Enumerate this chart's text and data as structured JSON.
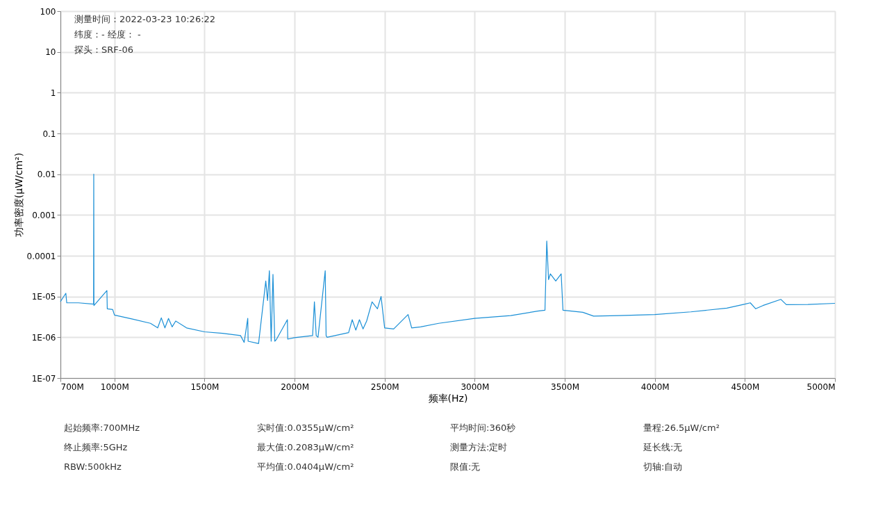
{
  "chart_data": {
    "type": "line",
    "xlabel": "频率(Hz)",
    "ylabel": "功率密度(μW/cm²)",
    "x": [
      700,
      730,
      735,
      800,
      884,
      885,
      886,
      958,
      960,
      990,
      1000,
      1100,
      1200,
      1240,
      1260,
      1280,
      1300,
      1320,
      1340,
      1400,
      1500,
      1600,
      1700,
      1720,
      1740,
      1742,
      1800,
      1840,
      1850,
      1860,
      1870,
      1880,
      1890,
      1900,
      1960,
      1962,
      2000,
      2100,
      2110,
      2120,
      2130,
      2170,
      2175,
      2180,
      2300,
      2320,
      2340,
      2360,
      2380,
      2400,
      2430,
      2460,
      2480,
      2500,
      2550,
      2630,
      2650,
      2700,
      2800,
      3000,
      3200,
      3350,
      3390,
      3400,
      3410,
      3420,
      3450,
      3480,
      3490,
      3600,
      3660,
      3800,
      4000,
      4200,
      4400,
      4500,
      4530,
      4560,
      4600,
      4700,
      4730,
      4850,
      5000
    ],
    "series": [
      {
        "color": "#1a8fd6",
        "values": [
          7.5e-06,
          1.2e-05,
          7e-06,
          7e-06,
          6.5e-06,
          0.01,
          6e-06,
          1.4e-05,
          5e-06,
          4.8e-06,
          3.5e-06,
          2.8e-06,
          2.2e-06,
          1.7e-06,
          3e-06,
          1.7e-06,
          2.9e-06,
          1.8e-06,
          2.5e-06,
          1.7e-06,
          1.36e-06,
          1.25e-06,
          1.1e-06,
          7.5e-07,
          2.9e-06,
          8e-07,
          7e-07,
          2.4e-05,
          8e-06,
          4.3e-05,
          8e-07,
          3.5e-05,
          8e-07,
          9e-07,
          2.7e-06,
          9e-07,
          9.8e-07,
          1.1e-06,
          7.4e-06,
          1.1e-06,
          1e-06,
          4.3e-05,
          1.1e-06,
          1e-06,
          1.3e-06,
          2.7e-06,
          1.5e-06,
          2.7e-06,
          1.6e-06,
          2.5e-06,
          7.4e-06,
          5e-06,
          1e-05,
          1.7e-06,
          1.6e-06,
          3.6e-06,
          1.7e-06,
          1.8e-06,
          2.2e-06,
          2.9e-06,
          3.4e-06,
          4.4e-06,
          4.6e-06,
          0.00023,
          2.6e-05,
          3.6e-05,
          2.4e-05,
          3.6e-05,
          4.6e-06,
          4.1e-06,
          3.3e-06,
          3.4e-06,
          3.6e-06,
          4.2e-06,
          5.2e-06,
          6.5e-06,
          7e-06,
          5e-06,
          6e-06,
          8.5e-06,
          6.3e-06,
          6.4e-06,
          6.8e-06
        ]
      }
    ],
    "xlim": [
      700,
      5000
    ],
    "xticks": [
      {
        "value": 700,
        "label": "700M"
      },
      {
        "value": 1000,
        "label": "1000M"
      },
      {
        "value": 1500,
        "label": "1500M"
      },
      {
        "value": 2000,
        "label": "2000M"
      },
      {
        "value": 2500,
        "label": "2500M"
      },
      {
        "value": 3000,
        "label": "3000M"
      },
      {
        "value": 3500,
        "label": "3500M"
      },
      {
        "value": 4000,
        "label": "4000M"
      },
      {
        "value": 4500,
        "label": "4500M"
      },
      {
        "value": 5000,
        "label": "5000M"
      }
    ],
    "ylim": [
      1e-07,
      100
    ],
    "log": true,
    "yticks": [
      100,
      10,
      1,
      0.1,
      0.01,
      0.001,
      {
        "value": 0.0001,
        "label": "0.0001"
      },
      {
        "value": 1e-05,
        "label": "1E-05"
      },
      {
        "value": 1e-06,
        "label": "1E-06"
      },
      {
        "value": 1e-07,
        "label": "1E-07"
      }
    ],
    "grid": true,
    "annotations": [
      "测量时间：2022-03-23 10:26:22",
      "纬度：- 经度： -",
      "探头：SRF-06",
      "起始频率:700MHz",
      "实时值:0.0355μW/cm²",
      "平均时间:360秒",
      "量程:26.5μW/cm²",
      "终止频率:5GHz",
      "最大值:0.2083μW/cm²",
      "测量方法:定时",
      "延长线:无",
      "RBW:500kHz",
      "平均值:0.0404μW/cm²",
      "限值:无",
      "切轴:自动"
    ]
  }
}
